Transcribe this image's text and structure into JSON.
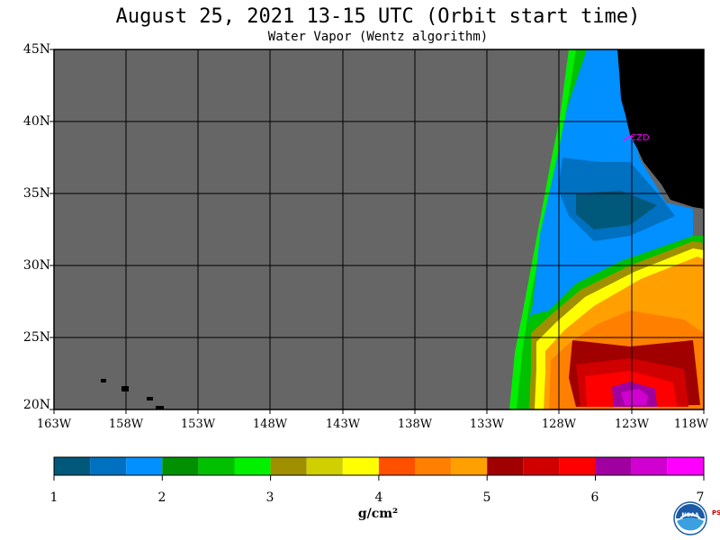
{
  "header": {
    "title": "August 25, 2021  13-15 UTC  (Orbit start time)",
    "subtitle": "Water Vapor (Wentz algorithm)"
  },
  "map": {
    "lat_labels": [
      "45N",
      "40N",
      "35N",
      "30N",
      "25N",
      "20N"
    ],
    "lon_labels": [
      "163W",
      "158W",
      "153W",
      "148W",
      "143W",
      "138W",
      "133W",
      "128W",
      "123W",
      "118W"
    ],
    "station_label": "CZD",
    "colors": {
      "no_data": "#666666",
      "land": "#000000",
      "grid": "#000000",
      "station": "#ff00ff"
    }
  },
  "colorbar": {
    "tick_labels": [
      "1",
      "2",
      "3",
      "4",
      "5",
      "6",
      "7"
    ],
    "unit": "g/cm²",
    "colors": [
      "#00587a",
      "#0070c0",
      "#0090ff",
      "#009000",
      "#00c000",
      "#00f000",
      "#a09000",
      "#d0d000",
      "#ffff00",
      "#ff5000",
      "#ff8000",
      "#ffa000",
      "#a00000",
      "#d00000",
      "#ff0000",
      "#a000a0",
      "#d000d0",
      "#ff00ff"
    ]
  },
  "logo": {
    "text": "NOAA",
    "side_text": "PSL"
  }
}
